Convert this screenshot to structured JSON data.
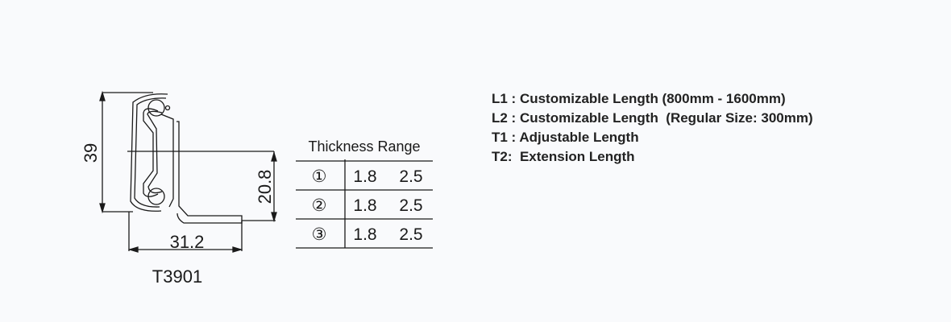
{
  "diagram": {
    "model": "T3901",
    "dimensions": {
      "height": "39",
      "inner_height": "20.8",
      "width": "31.2"
    },
    "table": {
      "title": "Thickness Range",
      "rows": [
        {
          "index": "①",
          "t1": "1.8",
          "t2": "2.5"
        },
        {
          "index": "②",
          "t1": "1.8",
          "t2": "2.5"
        },
        {
          "index": "③",
          "t1": "1.8",
          "t2": "2.5"
        }
      ]
    }
  },
  "specs": [
    "L1 : Customizable Length (800mm - 1600mm)",
    "L2 : Customizable Length  (Regular Size: 300mm)",
    "T1 : Adjustable Length",
    "T2:  Extension Length"
  ]
}
